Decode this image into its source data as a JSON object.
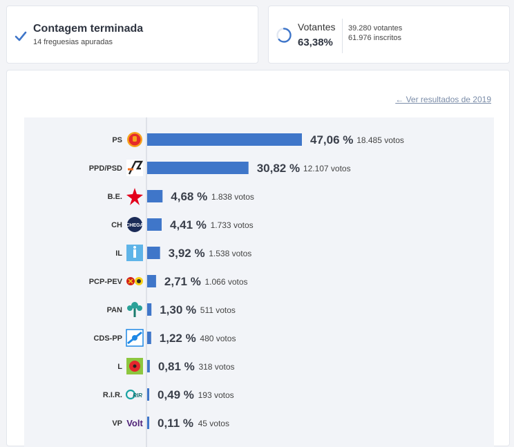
{
  "status": {
    "title": "Contagem terminada",
    "subtitle": "14 freguesias apuradas"
  },
  "turnout": {
    "label": "Votantes",
    "percent": "63,38%",
    "percent_value": 63.38,
    "voters": "39.280 votantes",
    "registered": "61.976 inscritos"
  },
  "results": {
    "prev_link": "← Ver resultados de 2019",
    "bar_color": "#3f76c9"
  },
  "chart_data": {
    "type": "bar",
    "orientation": "horizontal",
    "xlim": [
      0,
      47.06
    ],
    "categories": [
      "PS",
      "PPD/PSD",
      "B.E.",
      "CH",
      "IL",
      "PCP-PEV",
      "PAN",
      "CDS-PP",
      "L",
      "R.I.R.",
      "VP"
    ],
    "values": [
      47.06,
      30.82,
      4.68,
      4.41,
      3.92,
      2.71,
      1.3,
      1.22,
      0.81,
      0.49,
      0.11
    ],
    "percent_labels": [
      "47,06 %",
      "30,82 %",
      "4,68 %",
      "4,41 %",
      "3,92 %",
      "2,71 %",
      "1,30 %",
      "1,22 %",
      "0,81 %",
      "0,49 %",
      "0,11 %"
    ],
    "vote_labels": [
      "18.485 votos",
      "12.107 votos",
      "1.838 votos",
      "1.733 votos",
      "1.538 votos",
      "1.066 votos",
      "511 votos",
      "480 votos",
      "318 votos",
      "193 votos",
      "45 votos"
    ],
    "votes": [
      18485,
      12107,
      1838,
      1733,
      1538,
      1066,
      511,
      480,
      318,
      193,
      45
    ],
    "logo_icons": [
      "ps-logo-icon",
      "psd-logo-icon",
      "be-logo-icon",
      "chega-logo-icon",
      "il-logo-icon",
      "cdu-logo-icon",
      "pan-logo-icon",
      "cds-logo-icon",
      "livre-logo-icon",
      "rir-logo-icon",
      "volt-logo-icon"
    ],
    "logo_texts": [
      "",
      "",
      "",
      "CHEGA",
      "",
      "",
      "",
      "",
      "",
      "RIR",
      "Volt"
    ]
  }
}
